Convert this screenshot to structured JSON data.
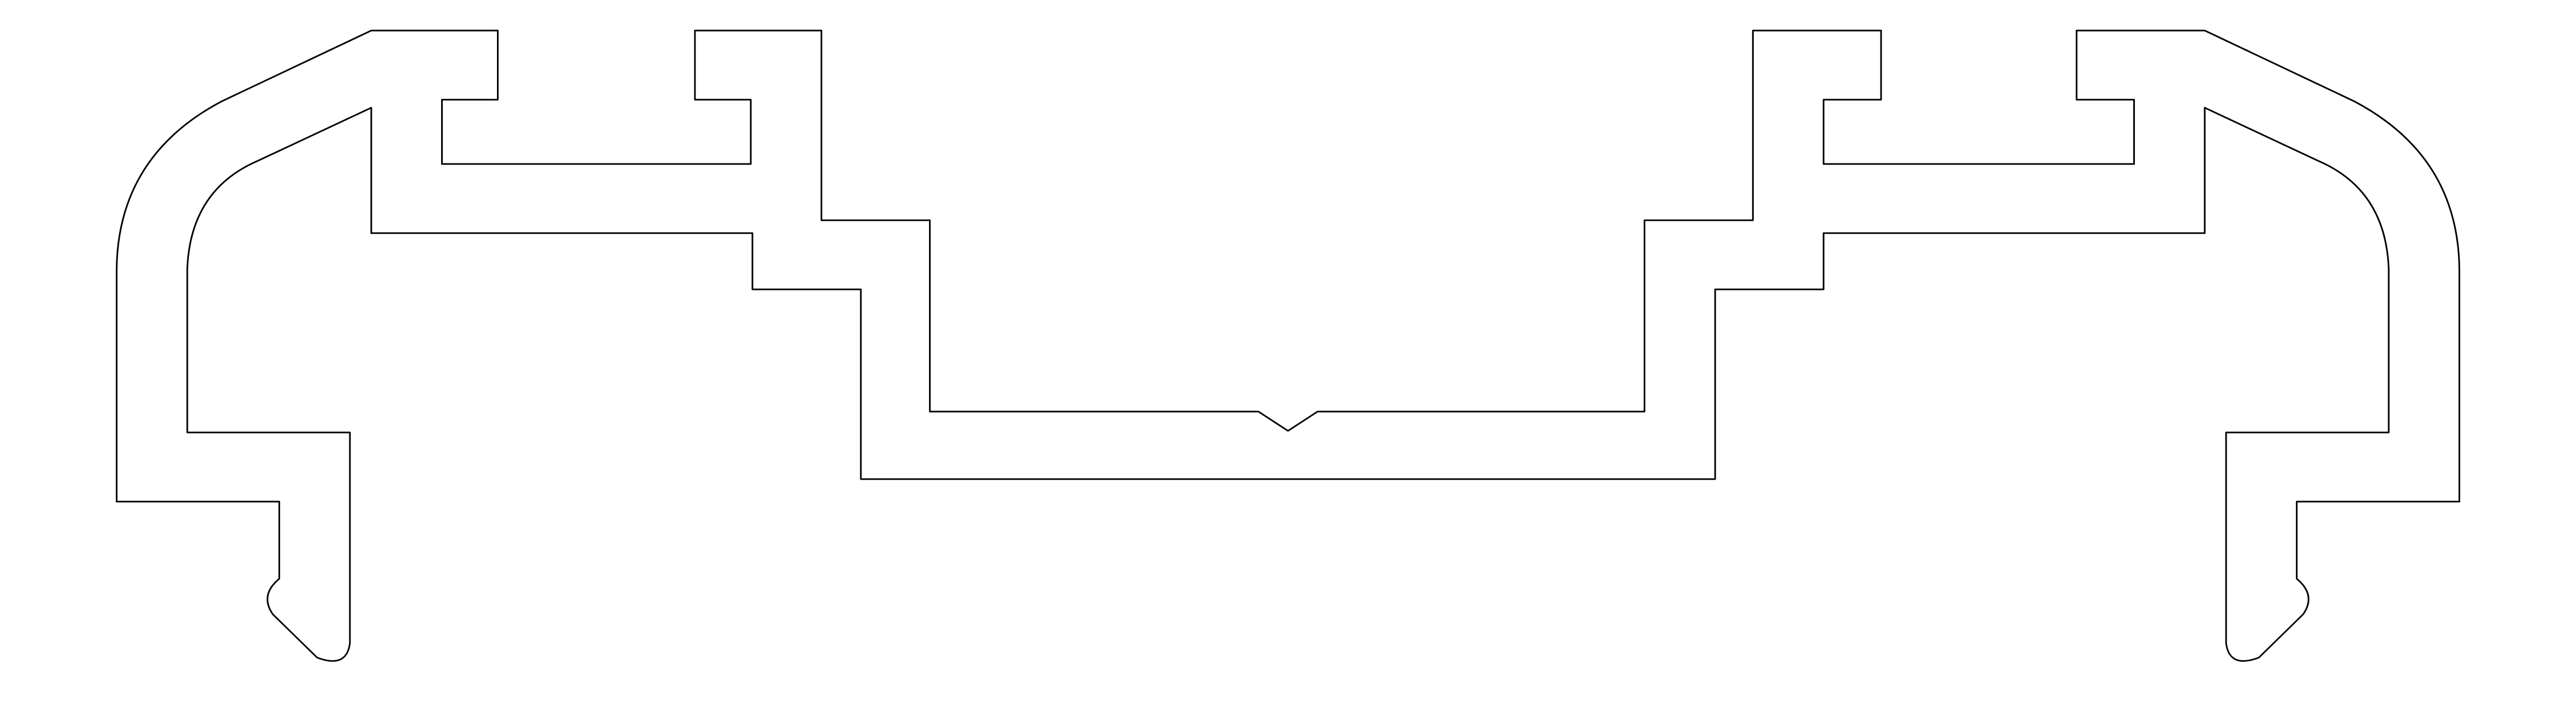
{
  "diagram": {
    "description_text": "",
    "colors": {
      "background": "#ffffff",
      "stroke": "#000000"
    }
  }
}
